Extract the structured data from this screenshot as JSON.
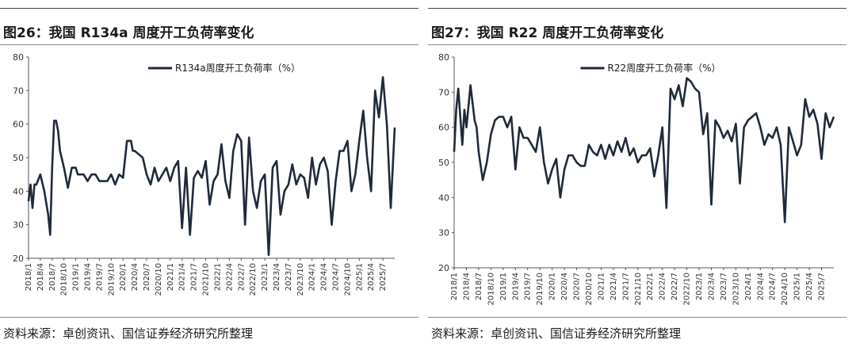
{
  "figures": [
    {
      "id": "left",
      "title": "图26：我国 R134a 周度开工负荷率变化",
      "source": "资料来源：卓创资讯、国信证券经济研究所整理",
      "color": "#1f2a3a",
      "chart_data": {
        "type": "line",
        "title": "图26：我国 R134a 周度开工负荷率变化",
        "xlabel": "",
        "ylabel": "",
        "ylim": [
          20,
          80
        ],
        "yticks": [
          20,
          30,
          40,
          50,
          60,
          70,
          80
        ],
        "grid": false,
        "legend_position": "top-center",
        "x_range": [
          "2018-01",
          "2025-10"
        ],
        "xtick_labels": [
          "2018/1",
          "2018/4",
          "2018/7",
          "2018/10",
          "2019/1",
          "2019/4",
          "2019/7",
          "2019/10",
          "2020/1",
          "2020/4",
          "2020/7",
          "2020/10",
          "2021/1",
          "2021/4",
          "2021/7",
          "2021/10",
          "2022/1",
          "2022/4",
          "2022/7",
          "2022/10",
          "2023/1",
          "2023/4",
          "2023/7",
          "2023/10",
          "2024/1",
          "2024/4",
          "2024/7",
          "2024/10",
          "2025/1",
          "2025/4",
          "2025/7"
        ],
        "series": [
          {
            "name": "R134a周度开工负荷率（%）",
            "x": [
              "2018-01",
              "2018-01",
              "2018-02",
              "2018-02",
              "2018-03",
              "2018-04",
              "2018-05",
              "2018-06",
              "2018-06",
              "2018-07",
              "2018-07",
              "2018-08",
              "2018-08",
              "2018-09",
              "2018-10",
              "2018-11",
              "2018-12",
              "2019-01",
              "2019-01",
              "2019-02",
              "2019-03",
              "2019-04",
              "2019-05",
              "2019-06",
              "2019-07",
              "2019-08",
              "2019-09",
              "2019-10",
              "2019-11",
              "2019-12",
              "2020-01",
              "2020-02",
              "2020-03",
              "2020-03",
              "2020-04",
              "2020-05",
              "2020-06",
              "2020-07",
              "2020-08",
              "2020-09",
              "2020-10",
              "2020-11",
              "2020-12",
              "2021-01",
              "2021-02",
              "2021-03",
              "2021-04",
              "2021-05",
              "2021-06",
              "2021-07",
              "2021-08",
              "2021-09",
              "2021-10",
              "2021-11",
              "2021-12",
              "2022-01",
              "2022-02",
              "2022-03",
              "2022-04",
              "2022-05",
              "2022-06",
              "2022-07",
              "2022-08",
              "2022-09",
              "2022-10",
              "2022-11",
              "2022-12",
              "2023-01",
              "2023-02",
              "2023-03",
              "2023-04",
              "2023-05",
              "2023-06",
              "2023-07",
              "2023-08",
              "2023-09",
              "2023-10",
              "2023-11",
              "2023-12",
              "2024-01",
              "2024-02",
              "2024-03",
              "2024-04",
              "2024-05",
              "2024-06",
              "2024-07",
              "2024-08",
              "2024-09",
              "2024-10",
              "2024-11",
              "2024-12",
              "2025-01",
              "2025-02",
              "2025-03",
              "2025-04",
              "2025-05",
              "2025-06",
              "2025-07",
              "2025-08",
              "2025-09",
              "2025-10"
            ],
            "values": [
              37,
              42,
              35,
              42,
              42,
              45,
              40,
              33,
              27,
              47,
              61,
              61,
              58,
              52,
              47,
              41,
              47,
              47,
              45,
              45,
              45,
              43,
              45,
              45,
              43,
              43,
              43,
              45,
              42,
              45,
              44,
              55,
              55,
              52,
              52,
              51,
              50,
              45,
              42,
              47,
              43,
              45,
              47,
              43,
              47,
              49,
              29,
              47,
              27,
              44,
              46,
              44,
              49,
              36,
              43,
              45,
              54,
              43,
              38,
              52,
              57,
              55,
              30,
              56,
              40,
              35,
              43,
              45,
              21,
              47,
              49,
              33,
              40,
              42,
              48,
              42,
              45,
              44,
              38,
              50,
              42,
              48,
              50,
              46,
              30,
              43,
              52,
              52,
              55,
              40,
              45,
              55,
              64,
              50,
              40,
              70,
              62,
              74,
              60,
              35,
              59
            ]
          }
        ]
      }
    },
    {
      "id": "right",
      "title": "图27：我国 R22 周度开工负荷率变化",
      "source": "资料来源：卓创资讯、国信证券经济研究所整理",
      "color": "#1f2a3a",
      "chart_data": {
        "type": "line",
        "title": "图27：我国 R22 周度开工负荷率变化",
        "xlabel": "",
        "ylabel": "",
        "ylim": [
          20,
          80
        ],
        "yticks": [
          20,
          30,
          40,
          50,
          60,
          70,
          80
        ],
        "grid": false,
        "legend_position": "top-center",
        "x_range": [
          "2018-01",
          "2025-10"
        ],
        "xtick_labels": [
          "2018/1",
          "2018/4",
          "2018/7",
          "2018/10",
          "2019/1",
          "2019/4",
          "2019/7",
          "2019/10",
          "2020/1",
          "2020/4",
          "2020/7",
          "2020/10",
          "2021/1",
          "2021/4",
          "2021/7",
          "2021/10",
          "2022/1",
          "2022/4",
          "2022/7",
          "2022/10",
          "2023/1",
          "2023/4",
          "2023/7",
          "2023/10",
          "2024/1",
          "2024/4",
          "2024/7",
          "2024/10",
          "2025/1",
          "2025/4",
          "2025/7"
        ],
        "series": [
          {
            "name": "R22周度开工负荷率（%）",
            "x": [
              "2018-01",
              "2018-01",
              "2018-02",
              "2018-03",
              "2018-03",
              "2018-04",
              "2018-05",
              "2018-06",
              "2018-06",
              "2018-07",
              "2018-08",
              "2018-09",
              "2018-10",
              "2018-11",
              "2018-12",
              "2019-01",
              "2019-02",
              "2019-03",
              "2019-04",
              "2019-05",
              "2019-06",
              "2019-07",
              "2019-08",
              "2019-09",
              "2019-10",
              "2019-11",
              "2019-12",
              "2020-01",
              "2020-02",
              "2020-03",
              "2020-04",
              "2020-05",
              "2020-06",
              "2020-07",
              "2020-08",
              "2020-09",
              "2020-10",
              "2020-11",
              "2020-12",
              "2021-01",
              "2021-02",
              "2021-03",
              "2021-04",
              "2021-05",
              "2021-06",
              "2021-07",
              "2021-08",
              "2021-09",
              "2021-10",
              "2021-11",
              "2021-12",
              "2022-01",
              "2022-02",
              "2022-03",
              "2022-04",
              "2022-05",
              "2022-06",
              "2022-07",
              "2022-08",
              "2022-09",
              "2022-10",
              "2022-11",
              "2022-12",
              "2023-01",
              "2023-02",
              "2023-03",
              "2023-04",
              "2023-05",
              "2023-06",
              "2023-07",
              "2023-08",
              "2023-09",
              "2023-10",
              "2023-11",
              "2023-12",
              "2024-01",
              "2024-02",
              "2024-03",
              "2024-04",
              "2024-05",
              "2024-06",
              "2024-07",
              "2024-08",
              "2024-09",
              "2024-10",
              "2024-11",
              "2024-12",
              "2025-01",
              "2025-02",
              "2025-03",
              "2025-04",
              "2025-05",
              "2025-06",
              "2025-07",
              "2025-08",
              "2025-09",
              "2025-10"
            ],
            "values": [
              53,
              65,
              71,
              55,
              65,
              60,
              72,
              62,
              60,
              53,
              45,
              50,
              58,
              62,
              63,
              63,
              60,
              63,
              48,
              60,
              57,
              57,
              55,
              53,
              60,
              50,
              44,
              48,
              51,
              40,
              48,
              52,
              52,
              50,
              49,
              49,
              55,
              53,
              52,
              55,
              51,
              55,
              52,
              56,
              53,
              57,
              52,
              54,
              50,
              52,
              52,
              54,
              46,
              52,
              60,
              37,
              71,
              68,
              72,
              66,
              74,
              73,
              71,
              70,
              58,
              64,
              38,
              62,
              60,
              57,
              59,
              56,
              61,
              44,
              60,
              62,
              63,
              64,
              60,
              55,
              58,
              57,
              60,
              55,
              33,
              60,
              56,
              52,
              55,
              68,
              63,
              65,
              61,
              51,
              64,
              60,
              63
            ]
          }
        ]
      }
    }
  ]
}
